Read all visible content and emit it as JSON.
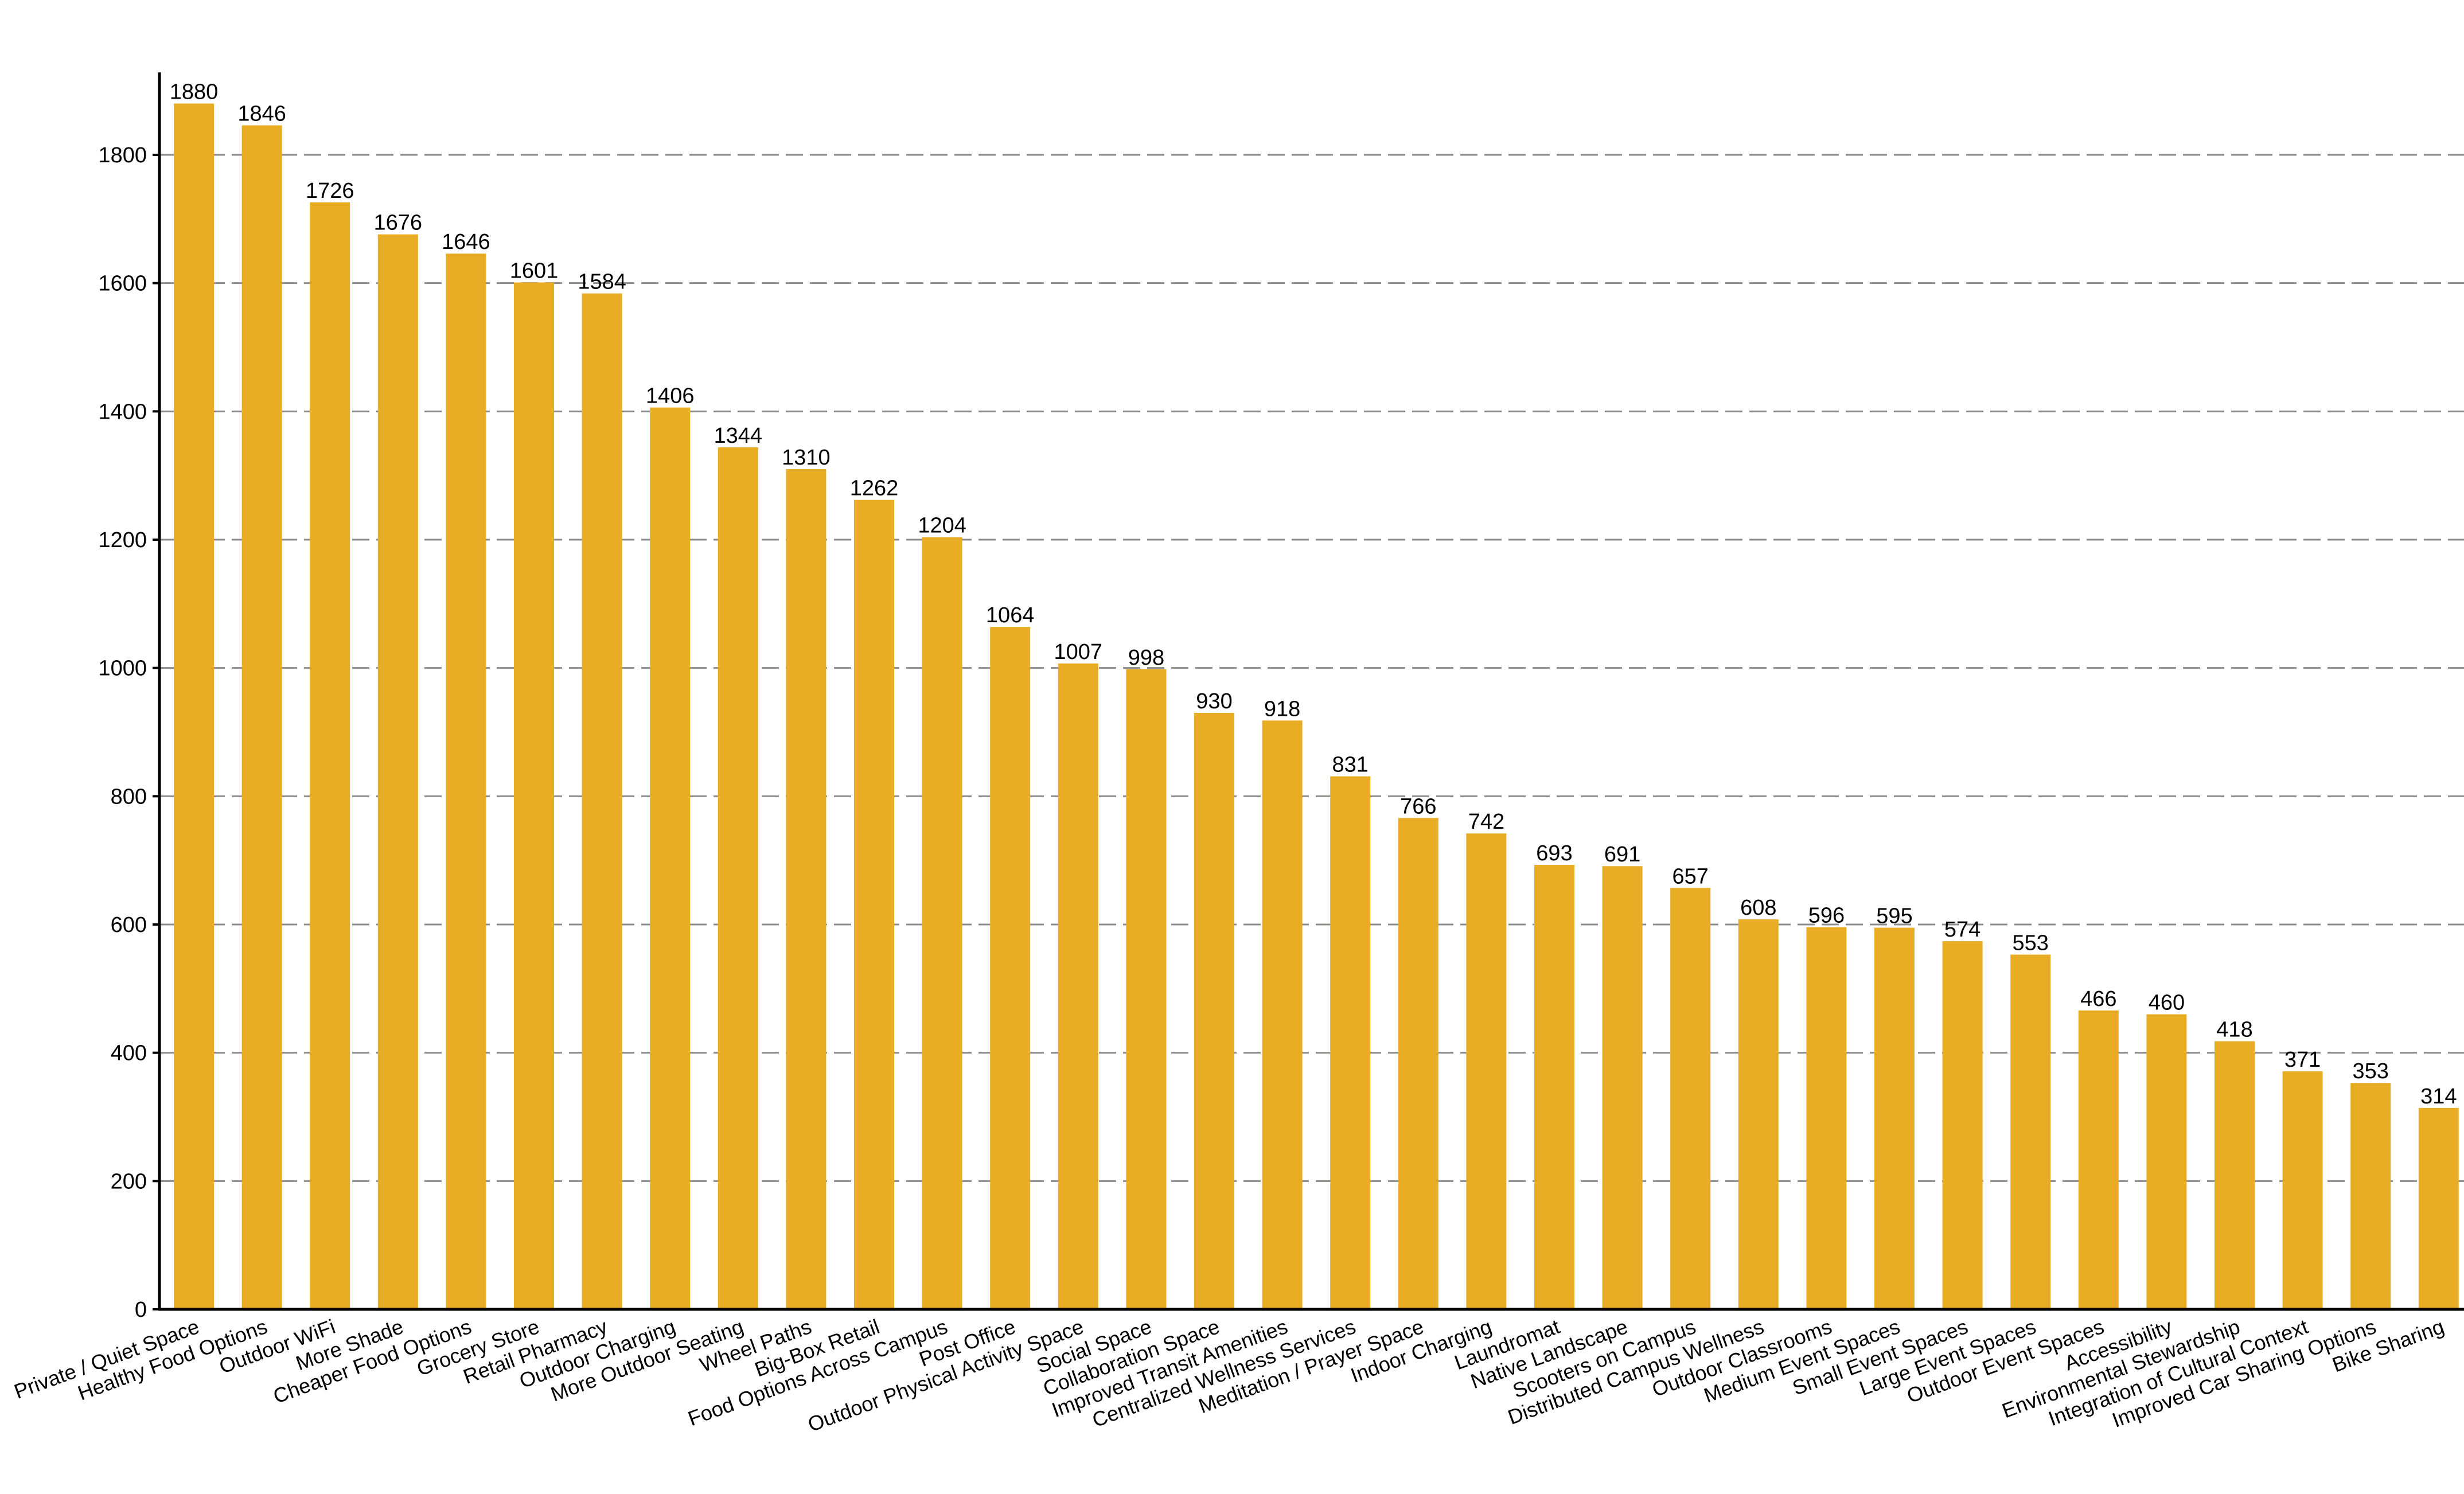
{
  "chart_data": {
    "type": "bar",
    "title": "",
    "xlabel": "",
    "ylabel": "",
    "ylim": [
      0,
      1925
    ],
    "yticks": [
      0,
      200,
      400,
      600,
      800,
      1000,
      1200,
      1400,
      1600,
      1800
    ],
    "grid": "horizontal dashed",
    "bar_color": "#E8AC25",
    "categories": [
      "Private / Quiet Space",
      "Healthy Food Options",
      "Outdoor WiFi",
      "More Shade",
      "Cheaper Food Options",
      "Grocery Store",
      "Retail Pharmacy",
      "Outdoor Charging",
      "More Outdoor Seating",
      "Wheel Paths",
      "Big-Box Retail",
      "Food Options Across Campus",
      "Post Office",
      "Outdoor Physical Activity Space",
      "Social Space",
      "Collaboration Space",
      "Improved Transit Amenities",
      "Centralized Wellness Services",
      "Meditation / Prayer Space",
      "Indoor Charging",
      "Laundromat",
      "Native Landscape",
      "Scooters on Campus",
      "Distributed Campus Wellness",
      "Outdoor Classrooms",
      "Medium Event Spaces",
      "Small Event Spaces",
      "Large Event Spaces",
      "Outdoor Event Spaces",
      "Accessibility",
      "Environmental Stewardship",
      "Integration of Cultural Context",
      "Improved Car Sharing Options",
      "Bike Sharing"
    ],
    "values": [
      1880,
      1846,
      1726,
      1676,
      1646,
      1601,
      1584,
      1406,
      1344,
      1310,
      1262,
      1204,
      1064,
      1007,
      998,
      930,
      918,
      831,
      766,
      742,
      693,
      691,
      657,
      608,
      596,
      595,
      574,
      553,
      466,
      460,
      418,
      371,
      353,
      314
    ],
    "value_labels": [
      "1880",
      "1846",
      "1726",
      "1676",
      "1646",
      "1601",
      "1584",
      "1406",
      "1344",
      "1310",
      "1262",
      "1204",
      "1064",
      "1007",
      "998",
      "930",
      "918",
      "831",
      "766",
      "742",
      "693",
      "691",
      "657",
      "608",
      "596",
      "595",
      "574",
      "553",
      "466",
      "460",
      "418",
      "371",
      "353",
      "314"
    ]
  }
}
